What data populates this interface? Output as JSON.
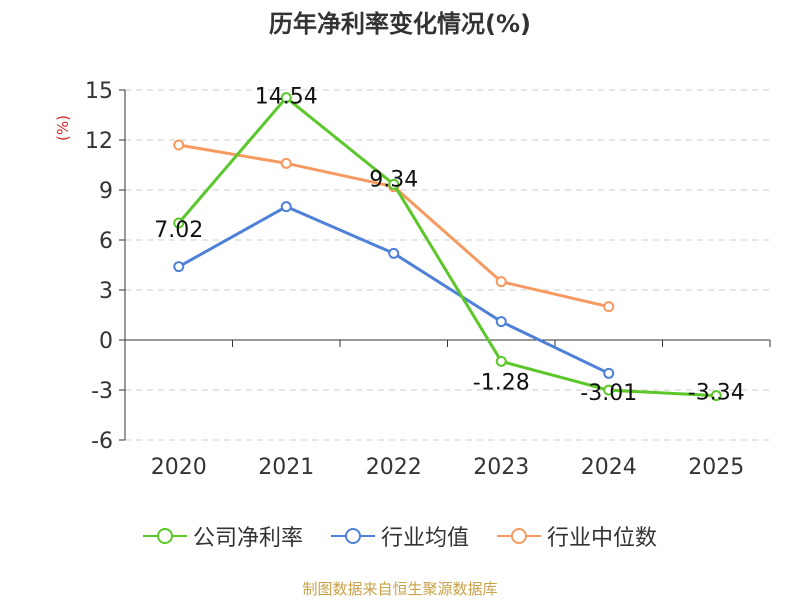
{
  "title": "历年净利率变化情况(%)",
  "footer": "制图数据来自恒生聚源数据库",
  "chart_data": {
    "type": "line",
    "title": "历年净利率变化情况(%)",
    "ylabel": "(%)",
    "ylabel_color": "#d62728",
    "ylim": [
      -6,
      15
    ],
    "yticks": [
      15,
      12,
      9,
      6,
      3,
      0,
      -3,
      -6
    ],
    "grid": "horizontal dashed",
    "legend_position": "bottom",
    "categories": [
      "2020",
      "2021",
      "2022",
      "2023",
      "2024",
      "2025"
    ],
    "series": [
      {
        "name": "公司净利率",
        "color": "#5cc72a",
        "values": [
          7.02,
          14.54,
          9.34,
          -1.28,
          -3.01,
          -3.34
        ],
        "labels": [
          "7.02",
          "14.54",
          "9.34",
          "-1.28",
          "-3.01",
          "-3.34"
        ]
      },
      {
        "name": "行业均值",
        "color": "#4f81d8",
        "values": [
          4.4,
          8.0,
          5.2,
          1.1,
          -2.0,
          null
        ]
      },
      {
        "name": "行业中位数",
        "color": "#f79a61",
        "values": [
          11.7,
          10.6,
          9.2,
          3.5,
          2.0,
          null
        ]
      }
    ]
  }
}
